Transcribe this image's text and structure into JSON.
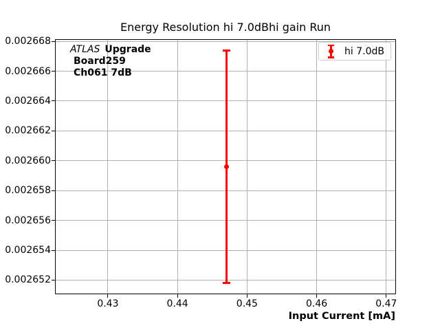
{
  "figure": {
    "background": "#ffffff",
    "spine_color": "#000000",
    "text_color": "#000000"
  },
  "chart_data": {
    "type": "scatter",
    "title": "Energy Resolution hi 7.0dBhi gain Run",
    "xlabel": "Input Current [mA]",
    "ylabel": "",
    "xlim": [
      0.4225,
      0.4713
    ],
    "ylim": [
      0.0026511,
      0.0026681
    ],
    "xticks": [
      0.43,
      0.44,
      0.45,
      0.46,
      0.47
    ],
    "xtick_labels": [
      "0.43",
      "0.44",
      "0.45",
      "0.46",
      "0.47"
    ],
    "yticks": [
      0.002652,
      0.002654,
      0.002656,
      0.002658,
      0.00266,
      0.002662,
      0.002664,
      0.002666,
      0.002668
    ],
    "ytick_labels": [
      "0.002652",
      "0.002654",
      "0.002656",
      "0.002658",
      "0.002660",
      "0.002662",
      "0.002664",
      "0.002666",
      "0.002668"
    ],
    "grid": true,
    "grid_color": "#b0b0b0",
    "series": [
      {
        "name": "hi 7.0dB",
        "color": "#ff0000",
        "marker": "circle-with-errorbar",
        "points": [
          {
            "x": 0.447,
            "y": 0.0026596,
            "yerr": 7.8e-06
          }
        ]
      }
    ],
    "legend": {
      "position": "upper-right",
      "entries": [
        {
          "label": "hi 7.0dB",
          "color": "#ff0000"
        }
      ]
    },
    "annotation": {
      "brand": "ATLAS",
      "brand_suffix": "Upgrade",
      "line2": "Board259",
      "line3": "Ch061 7dB"
    }
  }
}
